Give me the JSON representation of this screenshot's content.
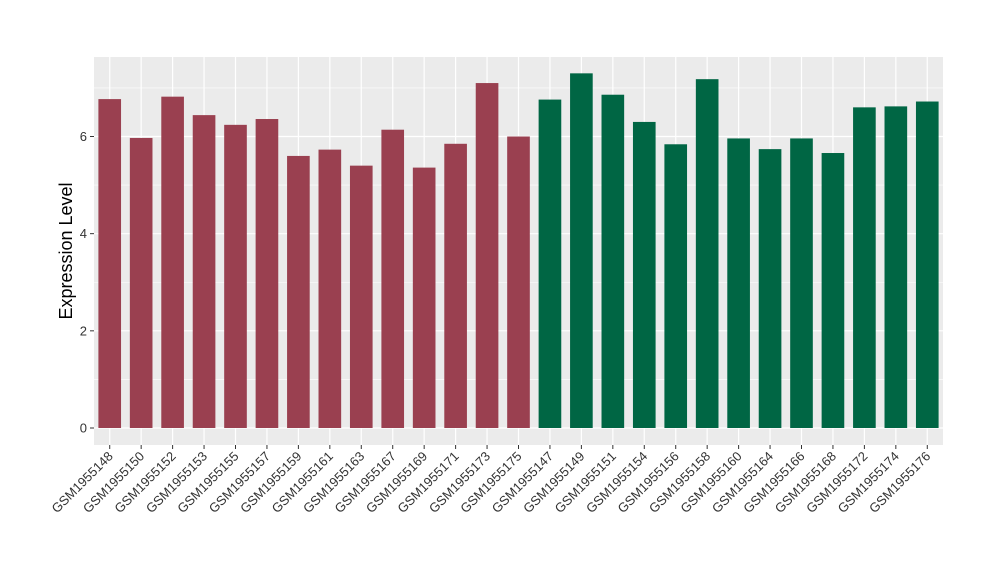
{
  "chart_data": {
    "type": "bar",
    "ylabel": "Expression Level",
    "xlabel": "",
    "ylim": [
      0,
      7.5
    ],
    "yticks": [
      0,
      2,
      4,
      6
    ],
    "grid": true,
    "categories": [
      "GSM1955148",
      "GSM1955150",
      "GSM1955152",
      "GSM1955153",
      "GSM1955155",
      "GSM1955157",
      "GSM1955159",
      "GSM1955161",
      "GSM1955163",
      "GSM1955167",
      "GSM1955169",
      "GSM1955171",
      "GSM1955173",
      "GSM1955175",
      "GSM1955147",
      "GSM1955149",
      "GSM1955151",
      "GSM1955154",
      "GSM1955156",
      "GSM1955158",
      "GSM1955160",
      "GSM1955164",
      "GSM1955166",
      "GSM1955168",
      "GSM1955172",
      "GSM1955174",
      "GSM1955176"
    ],
    "values": [
      6.77,
      5.97,
      6.82,
      6.44,
      6.24,
      6.36,
      5.6,
      5.73,
      5.4,
      6.14,
      5.36,
      5.85,
      7.1,
      6.0,
      6.76,
      7.3,
      6.86,
      6.3,
      5.84,
      7.18,
      5.96,
      5.74,
      5.96,
      5.66,
      6.6,
      6.62,
      6.72
    ],
    "group_colors": [
      "#9a4050",
      "#9a4050",
      "#9a4050",
      "#9a4050",
      "#9a4050",
      "#9a4050",
      "#9a4050",
      "#9a4050",
      "#9a4050",
      "#9a4050",
      "#9a4050",
      "#9a4050",
      "#9a4050",
      "#9a4050",
      "#006644",
      "#006644",
      "#006644",
      "#006644",
      "#006644",
      "#006644",
      "#006644",
      "#006644",
      "#006644",
      "#006644",
      "#006644",
      "#006644",
      "#006644"
    ],
    "panel_background": "#ebebeb",
    "gridline_color": "#ffffff"
  }
}
